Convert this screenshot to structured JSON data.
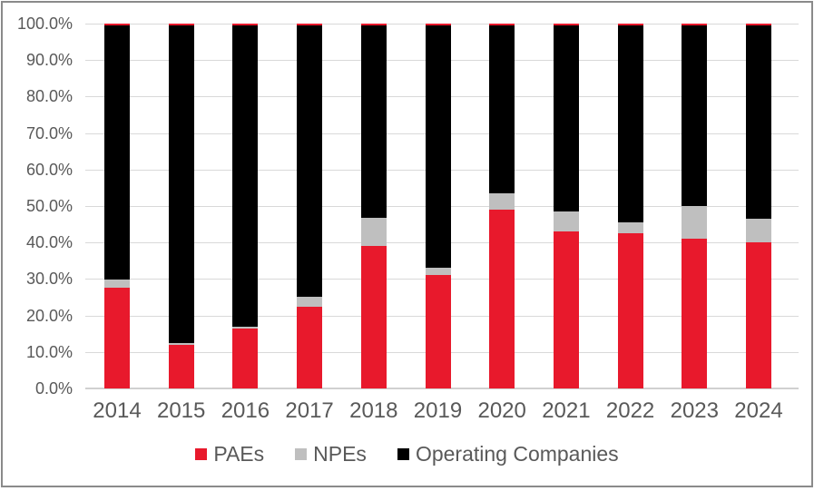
{
  "chart_data": {
    "type": "bar",
    "variant": "100% stacked column",
    "title": "",
    "xlabel": "",
    "ylabel": "",
    "categories": [
      "2014",
      "2015",
      "2016",
      "2017",
      "2018",
      "2019",
      "2020",
      "2021",
      "2022",
      "2023",
      "2024"
    ],
    "series": [
      {
        "name": "PAEs",
        "color": "#e8192c",
        "values": [
          27.5,
          12.0,
          16.4,
          22.4,
          39.0,
          31.0,
          49.0,
          43.0,
          42.5,
          41.0,
          40.0
        ]
      },
      {
        "name": "NPEs",
        "color": "#bfbfbf",
        "values": [
          2.3,
          0.5,
          0.5,
          2.7,
          7.8,
          2.2,
          4.5,
          5.5,
          3.0,
          9.0,
          6.5
        ]
      },
      {
        "name": "Operating Companies",
        "color": "#000000",
        "values": [
          70.2,
          87.5,
          83.1,
          74.9,
          53.2,
          66.8,
          46.5,
          51.5,
          54.5,
          50.0,
          53.5
        ]
      }
    ],
    "bar_top_accent_color": "#e8192c",
    "y_axis": {
      "min": 0,
      "max": 100,
      "step": 10,
      "tick_labels": [
        "0.0%",
        "10.0%",
        "20.0%",
        "30.0%",
        "40.0%",
        "50.0%",
        "60.0%",
        "70.0%",
        "80.0%",
        "90.0%",
        "100.0%"
      ]
    },
    "grid": true,
    "legend": {
      "position": "bottom",
      "items": [
        "PAEs",
        "NPEs",
        "Operating Companies"
      ]
    }
  },
  "colors": {
    "axis_text": "#595959",
    "gridline": "#d9d9d9",
    "frame_border": "#8a8a8a",
    "background": "#ffffff"
  }
}
